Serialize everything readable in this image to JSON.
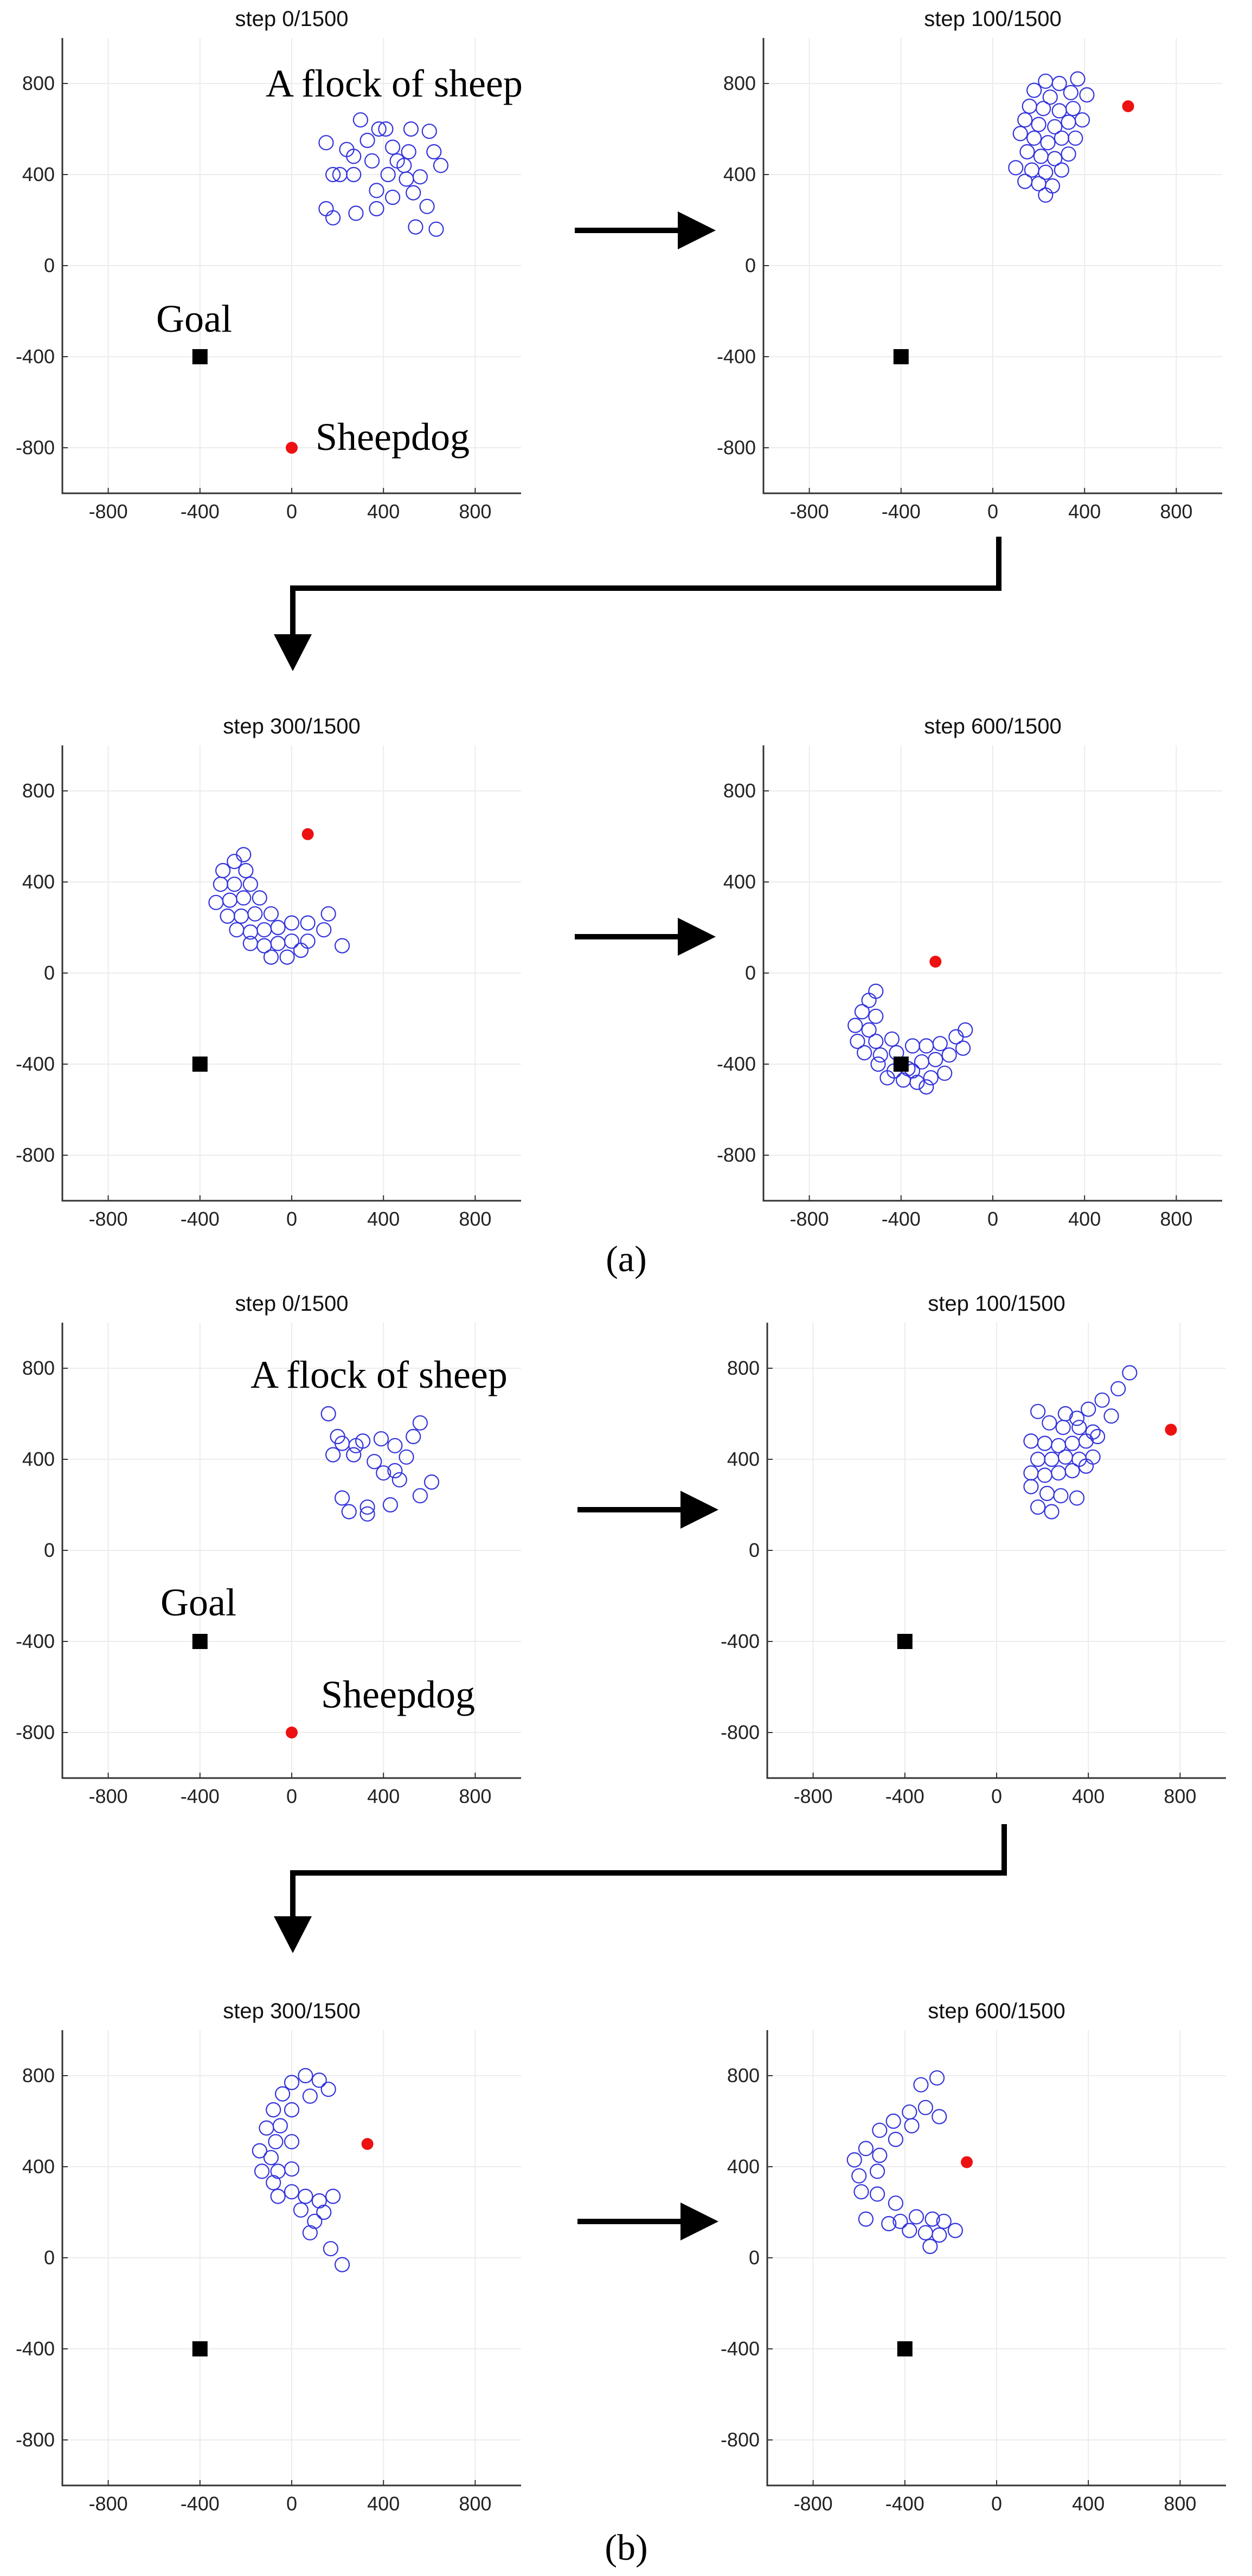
{
  "figure": {
    "subfig_labels": [
      "(a)",
      "(b)"
    ],
    "annotations": {
      "flock": "A flock of sheep",
      "goal": "Goal",
      "sheepdog": "Sheepdog"
    }
  },
  "colors": {
    "sheep": "#3333dd",
    "sheepdog": "#ee1111",
    "goal": "#000000",
    "grid": "#ececec"
  },
  "chart_data": [
    {
      "id": "a0",
      "type": "scatter",
      "title": "step 0/1500",
      "xlim": [
        -1000,
        1000
      ],
      "ylim": [
        -1000,
        1000
      ],
      "xticks": [
        -800,
        -400,
        0,
        400,
        800
      ],
      "yticks": [
        800,
        400,
        0,
        -400,
        -800
      ],
      "goal": [
        -400,
        -400
      ],
      "sheepdog": [
        0,
        -800
      ],
      "sheep": [
        [
          300,
          640
        ],
        [
          150,
          540
        ],
        [
          380,
          600
        ],
        [
          410,
          600
        ],
        [
          520,
          600
        ],
        [
          600,
          590
        ],
        [
          240,
          510
        ],
        [
          330,
          550
        ],
        [
          440,
          520
        ],
        [
          510,
          500
        ],
        [
          620,
          500
        ],
        [
          270,
          480
        ],
        [
          350,
          460
        ],
        [
          460,
          460
        ],
        [
          490,
          440
        ],
        [
          180,
          400
        ],
        [
          210,
          400
        ],
        [
          270,
          400
        ],
        [
          420,
          400
        ],
        [
          500,
          380
        ],
        [
          560,
          390
        ],
        [
          650,
          440
        ],
        [
          370,
          330
        ],
        [
          440,
          300
        ],
        [
          530,
          320
        ],
        [
          150,
          250
        ],
        [
          180,
          210
        ],
        [
          280,
          230
        ],
        [
          370,
          250
        ],
        [
          590,
          260
        ],
        [
          540,
          170
        ],
        [
          630,
          160
        ]
      ]
    },
    {
      "id": "a1",
      "type": "scatter",
      "title": "step 100/1500",
      "xlim": [
        -1000,
        1000
      ],
      "ylim": [
        -1000,
        1000
      ],
      "xticks": [
        -800,
        -400,
        0,
        400,
        800
      ],
      "yticks": [
        800,
        400,
        0,
        -400,
        -800
      ],
      "goal": [
        -400,
        -400
      ],
      "sheepdog": [
        590,
        700
      ],
      "sheep": [
        [
          230,
          810
        ],
        [
          290,
          800
        ],
        [
          370,
          820
        ],
        [
          180,
          770
        ],
        [
          250,
          740
        ],
        [
          340,
          760
        ],
        [
          410,
          750
        ],
        [
          160,
          700
        ],
        [
          220,
          690
        ],
        [
          290,
          680
        ],
        [
          350,
          690
        ],
        [
          140,
          640
        ],
        [
          200,
          620
        ],
        [
          270,
          610
        ],
        [
          330,
          630
        ],
        [
          390,
          640
        ],
        [
          120,
          580
        ],
        [
          180,
          560
        ],
        [
          240,
          540
        ],
        [
          300,
          560
        ],
        [
          360,
          560
        ],
        [
          150,
          500
        ],
        [
          210,
          480
        ],
        [
          270,
          470
        ],
        [
          330,
          490
        ],
        [
          100,
          430
        ],
        [
          170,
          420
        ],
        [
          230,
          410
        ],
        [
          300,
          420
        ],
        [
          140,
          370
        ],
        [
          200,
          360
        ],
        [
          260,
          350
        ],
        [
          230,
          310
        ]
      ]
    },
    {
      "id": "a2",
      "type": "scatter",
      "title": "step 300/1500",
      "xlim": [
        -1000,
        1000
      ],
      "ylim": [
        -1000,
        1000
      ],
      "xticks": [
        -800,
        -400,
        0,
        400,
        800
      ],
      "yticks": [
        800,
        400,
        0,
        -400,
        -800
      ],
      "goal": [
        -400,
        -400
      ],
      "sheepdog": [
        70,
        610
      ],
      "sheep": [
        [
          -210,
          520
        ],
        [
          -250,
          490
        ],
        [
          -300,
          450
        ],
        [
          -200,
          450
        ],
        [
          -310,
          390
        ],
        [
          -250,
          390
        ],
        [
          -180,
          390
        ],
        [
          -330,
          310
        ],
        [
          -270,
          320
        ],
        [
          -210,
          330
        ],
        [
          -140,
          330
        ],
        [
          -280,
          250
        ],
        [
          -220,
          250
        ],
        [
          -160,
          260
        ],
        [
          -90,
          260
        ],
        [
          -240,
          190
        ],
        [
          -180,
          180
        ],
        [
          -120,
          190
        ],
        [
          -60,
          200
        ],
        [
          0,
          220
        ],
        [
          70,
          220
        ],
        [
          -180,
          130
        ],
        [
          -120,
          120
        ],
        [
          -60,
          130
        ],
        [
          0,
          140
        ],
        [
          70,
          140
        ],
        [
          -90,
          70
        ],
        [
          -20,
          70
        ],
        [
          40,
          100
        ],
        [
          140,
          190
        ],
        [
          160,
          260
        ],
        [
          220,
          120
        ]
      ]
    },
    {
      "id": "a3",
      "type": "scatter",
      "title": "step 600/1500",
      "xlim": [
        -1000,
        1000
      ],
      "ylim": [
        -1000,
        1000
      ],
      "xticks": [
        -800,
        -400,
        0,
        400,
        800
      ],
      "yticks": [
        800,
        400,
        0,
        -400,
        -800
      ],
      "goal": [
        -400,
        -400
      ],
      "sheepdog": [
        -250,
        50
      ],
      "sheep": [
        [
          -510,
          -80
        ],
        [
          -540,
          -120
        ],
        [
          -570,
          -170
        ],
        [
          -510,
          -190
        ],
        [
          -600,
          -230
        ],
        [
          -540,
          -250
        ],
        [
          -590,
          -300
        ],
        [
          -510,
          -300
        ],
        [
          -440,
          -290
        ],
        [
          -560,
          -350
        ],
        [
          -490,
          -360
        ],
        [
          -420,
          -350
        ],
        [
          -350,
          -320
        ],
        [
          -290,
          -320
        ],
        [
          -230,
          -310
        ],
        [
          -160,
          -280
        ],
        [
          -120,
          -250
        ],
        [
          -500,
          -400
        ],
        [
          -430,
          -430
        ],
        [
          -370,
          -420
        ],
        [
          -310,
          -390
        ],
        [
          -250,
          -380
        ],
        [
          -190,
          -360
        ],
        [
          -130,
          -330
        ],
        [
          -460,
          -460
        ],
        [
          -390,
          -470
        ],
        [
          -330,
          -480
        ],
        [
          -270,
          -460
        ],
        [
          -210,
          -440
        ],
        [
          -350,
          -430
        ],
        [
          -290,
          -500
        ]
      ]
    },
    {
      "id": "b0",
      "type": "scatter",
      "title": "step 0/1500",
      "xlim": [
        -1000,
        1000
      ],
      "ylim": [
        -1000,
        1000
      ],
      "xticks": [
        -800,
        -400,
        0,
        400,
        800
      ],
      "yticks": [
        800,
        400,
        0,
        -400,
        -800
      ],
      "goal": [
        -400,
        -400
      ],
      "sheepdog": [
        0,
        -800
      ],
      "sheep": [
        [
          160,
          600
        ],
        [
          200,
          500
        ],
        [
          220,
          470
        ],
        [
          280,
          460
        ],
        [
          310,
          480
        ],
        [
          390,
          490
        ],
        [
          450,
          460
        ],
        [
          560,
          560
        ],
        [
          530,
          500
        ],
        [
          180,
          420
        ],
        [
          270,
          420
        ],
        [
          360,
          390
        ],
        [
          400,
          340
        ],
        [
          450,
          350
        ],
        [
          470,
          310
        ],
        [
          500,
          410
        ],
        [
          610,
          300
        ],
        [
          560,
          240
        ],
        [
          220,
          230
        ],
        [
          250,
          170
        ],
        [
          330,
          160
        ],
        [
          330,
          190
        ],
        [
          430,
          200
        ]
      ]
    },
    {
      "id": "b1",
      "type": "scatter",
      "title": "step 100/1500",
      "xlim": [
        -1000,
        1000
      ],
      "ylim": [
        -1000,
        1000
      ],
      "xticks": [
        -800,
        -400,
        0,
        400,
        800
      ],
      "yticks": [
        800,
        400,
        0,
        -400,
        -800
      ],
      "goal": [
        -400,
        -400
      ],
      "sheepdog": [
        760,
        530
      ],
      "sheep": [
        [
          580,
          780
        ],
        [
          530,
          710
        ],
        [
          460,
          660
        ],
        [
          400,
          620
        ],
        [
          350,
          580
        ],
        [
          300,
          600
        ],
        [
          180,
          610
        ],
        [
          230,
          560
        ],
        [
          290,
          540
        ],
        [
          360,
          540
        ],
        [
          420,
          520
        ],
        [
          500,
          590
        ],
        [
          150,
          480
        ],
        [
          210,
          470
        ],
        [
          270,
          460
        ],
        [
          330,
          470
        ],
        [
          390,
          480
        ],
        [
          440,
          500
        ],
        [
          180,
          400
        ],
        [
          240,
          400
        ],
        [
          300,
          410
        ],
        [
          360,
          400
        ],
        [
          420,
          410
        ],
        [
          150,
          340
        ],
        [
          210,
          330
        ],
        [
          270,
          340
        ],
        [
          330,
          350
        ],
        [
          390,
          370
        ],
        [
          150,
          280
        ],
        [
          220,
          250
        ],
        [
          280,
          240
        ],
        [
          350,
          230
        ],
        [
          180,
          190
        ],
        [
          240,
          170
        ]
      ]
    },
    {
      "id": "b2",
      "type": "scatter",
      "title": "step 300/1500",
      "xlim": [
        -1000,
        1000
      ],
      "ylim": [
        -1000,
        1000
      ],
      "xticks": [
        -800,
        -400,
        0,
        400,
        800
      ],
      "yticks": [
        800,
        400,
        0,
        -400,
        -800
      ],
      "goal": [
        -400,
        -400
      ],
      "sheepdog": [
        330,
        500
      ],
      "sheep": [
        [
          60,
          800
        ],
        [
          120,
          780
        ],
        [
          0,
          770
        ],
        [
          160,
          740
        ],
        [
          -40,
          720
        ],
        [
          80,
          710
        ],
        [
          -80,
          650
        ],
        [
          0,
          650
        ],
        [
          -110,
          570
        ],
        [
          -50,
          580
        ],
        [
          -70,
          510
        ],
        [
          0,
          510
        ],
        [
          -140,
          470
        ],
        [
          -90,
          440
        ],
        [
          -130,
          380
        ],
        [
          -60,
          380
        ],
        [
          0,
          390
        ],
        [
          -80,
          330
        ],
        [
          0,
          290
        ],
        [
          -60,
          270
        ],
        [
          60,
          270
        ],
        [
          120,
          250
        ],
        [
          180,
          270
        ],
        [
          140,
          200
        ],
        [
          40,
          210
        ],
        [
          100,
          160
        ],
        [
          80,
          110
        ],
        [
          170,
          40
        ],
        [
          220,
          -30
        ]
      ]
    },
    {
      "id": "b3",
      "type": "scatter",
      "title": "step 600/1500",
      "xlim": [
        -1000,
        1000
      ],
      "ylim": [
        -1000,
        1000
      ],
      "xticks": [
        -800,
        -400,
        0,
        400,
        800
      ],
      "yticks": [
        800,
        400,
        0,
        -400,
        -800
      ],
      "goal": [
        -400,
        -400
      ],
      "sheepdog": [
        -130,
        420
      ],
      "sheep": [
        [
          -260,
          790
        ],
        [
          -330,
          760
        ],
        [
          -310,
          660
        ],
        [
          -380,
          640
        ],
        [
          -250,
          620
        ],
        [
          -450,
          600
        ],
        [
          -370,
          580
        ],
        [
          -510,
          560
        ],
        [
          -440,
          520
        ],
        [
          -570,
          480
        ],
        [
          -510,
          450
        ],
        [
          -620,
          430
        ],
        [
          -600,
          360
        ],
        [
          -520,
          380
        ],
        [
          -590,
          290
        ],
        [
          -520,
          280
        ],
        [
          -440,
          240
        ],
        [
          -420,
          160
        ],
        [
          -350,
          180
        ],
        [
          -470,
          150
        ],
        [
          -280,
          170
        ],
        [
          -230,
          160
        ],
        [
          -380,
          120
        ],
        [
          -310,
          110
        ],
        [
          -250,
          100
        ],
        [
          -180,
          120
        ],
        [
          -290,
          50
        ],
        [
          -570,
          170
        ]
      ]
    }
  ]
}
